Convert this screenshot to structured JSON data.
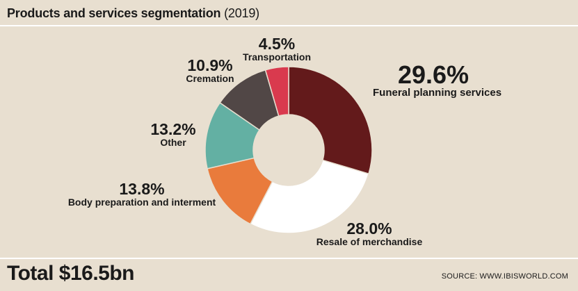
{
  "header": {
    "title": "Products and services segmentation",
    "year": "(2019)"
  },
  "chart_data": {
    "type": "pie",
    "donut": true,
    "segments": [
      {
        "name": "Funeral planning services",
        "value": 29.6,
        "label": "29.6%",
        "color": "#631a1b"
      },
      {
        "name": "Resale of merchandise",
        "value": 28.0,
        "label": "28.0%",
        "color": "#ffffff"
      },
      {
        "name": "Body preparation and interment",
        "value": 13.8,
        "label": "13.8%",
        "color": "#e97b3c"
      },
      {
        "name": "Other",
        "value": 13.2,
        "label": "13.2%",
        "color": "#63b0a3"
      },
      {
        "name": "Cremation",
        "value": 10.9,
        "label": "10.9%",
        "color": "#514746"
      },
      {
        "name": "Transportation",
        "value": 4.5,
        "label": "4.5%",
        "color": "#d93a4e"
      }
    ]
  },
  "footer": {
    "total": "Total $16.5bn",
    "source": "SOURCE: WWW.IBISWORLD.COM"
  }
}
